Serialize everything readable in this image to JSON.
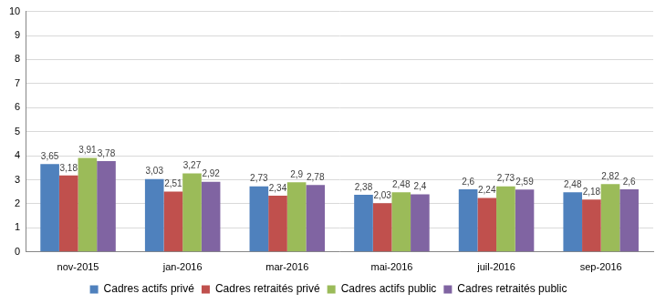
{
  "chart_data": {
    "type": "bar",
    "categories": [
      "nov-2015",
      "jan-2016",
      "mar-2016",
      "mai-2016",
      "juil-2016",
      "sep-2016"
    ],
    "series": [
      {
        "name": "Cadres actifs privé",
        "color": "#4f81bd",
        "values": [
          3.65,
          3.03,
          2.73,
          2.38,
          2.6,
          2.48
        ],
        "value_labels": [
          "3,65",
          "3,03",
          "2,73",
          "2,38",
          "2,6",
          "2,48"
        ]
      },
      {
        "name": "Cadres retraités privé",
        "color": "#c0504d",
        "values": [
          3.18,
          2.51,
          2.34,
          2.03,
          2.24,
          2.18
        ],
        "value_labels": [
          "3,18",
          "2,51",
          "2,34",
          "2,03",
          "2,24",
          "2,18"
        ]
      },
      {
        "name": "Cadres actifs public",
        "color": "#9bbb59",
        "values": [
          3.91,
          3.27,
          2.9,
          2.48,
          2.73,
          2.82
        ],
        "value_labels": [
          "3,91",
          "3,27",
          "2,9",
          "2,48",
          "2,73",
          "2,82"
        ]
      },
      {
        "name": "Cadres retraités public",
        "color": "#8064a2",
        "values": [
          3.78,
          2.92,
          2.78,
          2.4,
          2.59,
          2.6
        ],
        "value_labels": [
          "3,78",
          "2,92",
          "2,78",
          "2,4",
          "2,59",
          "2,6"
        ]
      }
    ],
    "ylim": [
      0,
      10
    ],
    "yticks": [
      0,
      1,
      2,
      3,
      4,
      5,
      6,
      7,
      8,
      9,
      10
    ],
    "grid": true,
    "legend": "bottom",
    "data_labels": true
  }
}
